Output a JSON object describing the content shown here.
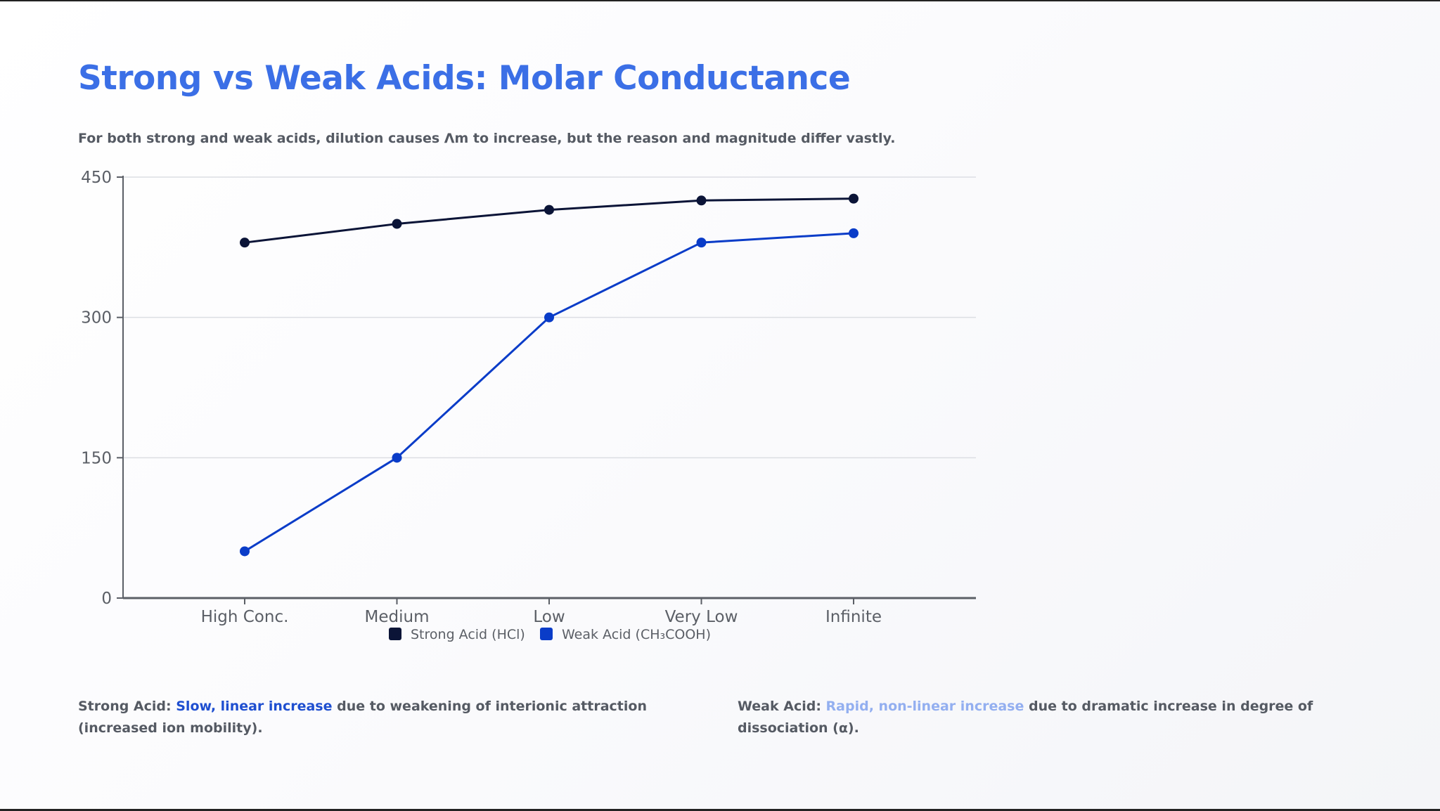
{
  "title": "Strong vs Weak Acids: Molar Conductance",
  "subtitle": "For both strong and weak acids, dilution causes Λm to increase, but the reason and magnitude differ vastly.",
  "chart_data": {
    "type": "line",
    "categories": [
      "High Conc.",
      "Medium",
      "Low",
      "Very Low",
      "Infinite"
    ],
    "series": [
      {
        "name": "Strong Acid (HCl)",
        "values": [
          380,
          400,
          415,
          425,
          427
        ],
        "color": "#0b1437"
      },
      {
        "name": "Weak Acid (CH₃COOH)",
        "values": [
          50,
          150,
          300,
          380,
          390
        ],
        "color": "#0a3cc8"
      }
    ],
    "yticks": [
      0,
      150,
      300,
      450
    ],
    "ylim": [
      0,
      450
    ],
    "grid": true,
    "legend": "bottom-center"
  },
  "notes": {
    "strong": {
      "label": "Strong Acid:",
      "highlight": "Slow, linear increase",
      "rest": "due to weakening of interionic attraction (increased ion mobility)."
    },
    "weak": {
      "label": "Weak Acid:",
      "highlight": "Rapid, non-linear increase",
      "rest": "due to dramatic increase in degree of dissociation (α)."
    }
  }
}
